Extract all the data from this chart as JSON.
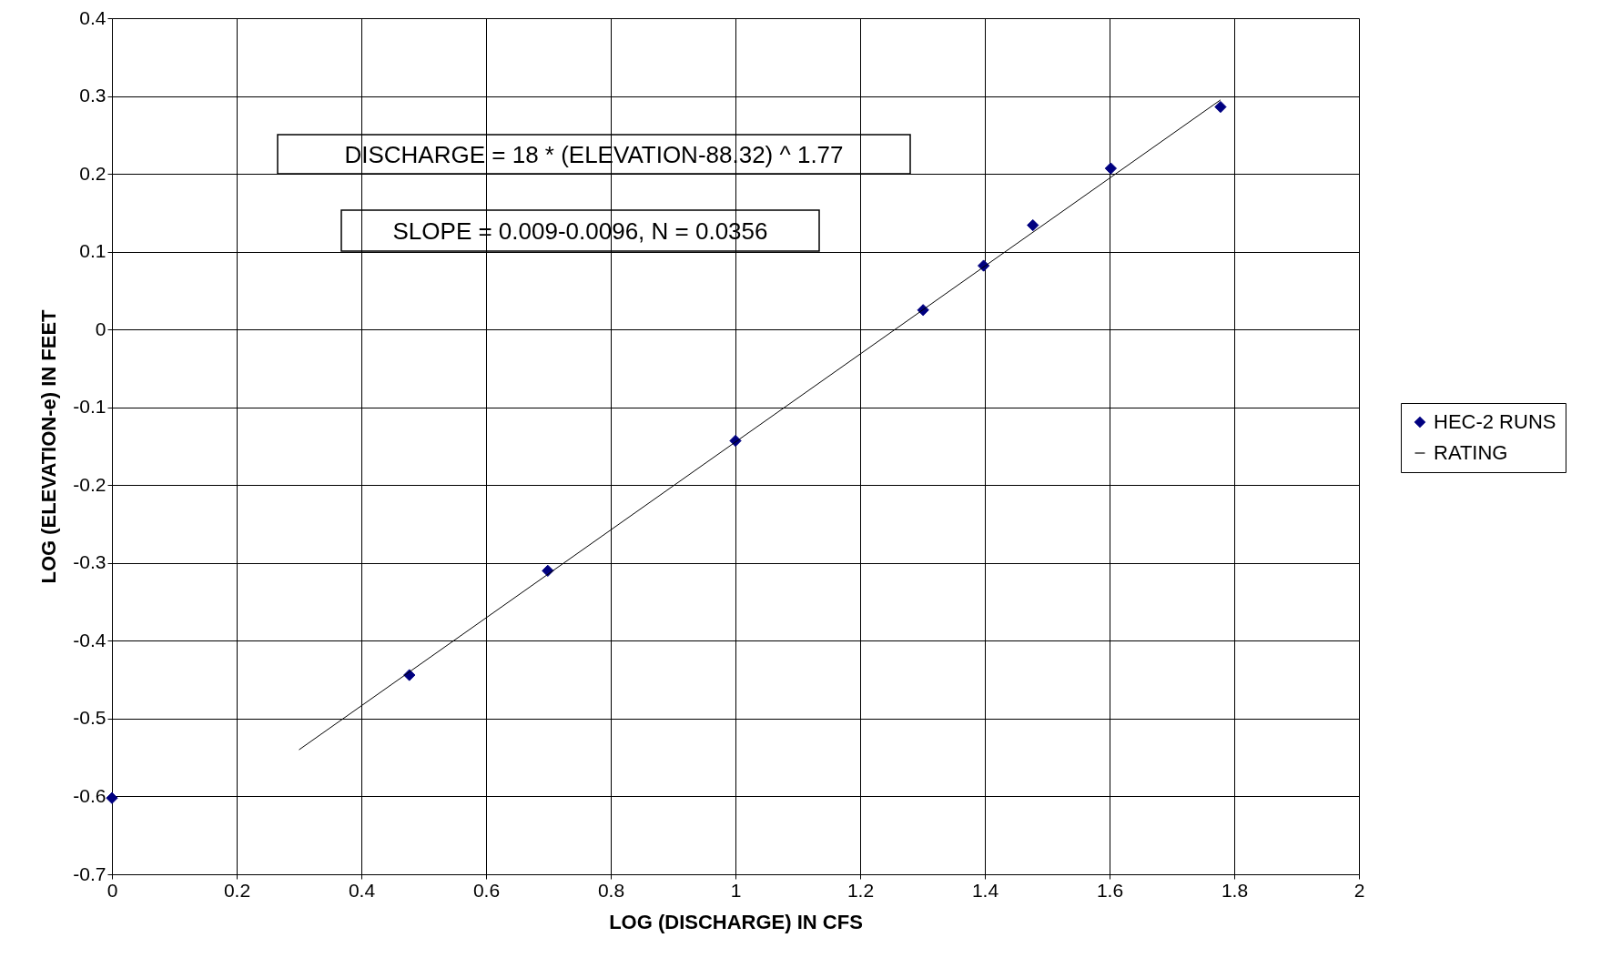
{
  "chart_data": {
    "type": "scatter",
    "xlabel": "LOG (DISCHARGE) IN CFS",
    "ylabel": "LOG (ELEVATION-e) IN FEET",
    "series": [
      {
        "name": "HEC-2 RUNS",
        "marker": "diamond",
        "color": "#000080",
        "x": [
          0,
          0.477,
          0.699,
          1,
          1.301,
          1.398,
          1.477,
          1.602,
          1.778
        ],
        "values": [
          -0.602,
          -0.444,
          -0.31,
          -0.143,
          0.025,
          0.082,
          0.134,
          0.207,
          0.286
        ]
      },
      {
        "name": "RATING",
        "type": "line",
        "marker": "none",
        "line_style": "solid",
        "color": "#000000",
        "x": [
          0.3,
          1.778
        ],
        "values": [
          -0.54,
          0.295
        ]
      }
    ],
    "annotations": [
      "DISCHARGE = 18 * (ELEVATION-88.32) ^ 1.77",
      "SLOPE = 0.009-0.0096, N = 0.0356"
    ],
    "xlim": [
      0,
      2
    ],
    "xticks": [
      0,
      0.2,
      0.4,
      0.6,
      0.8,
      1,
      1.2,
      1.4,
      1.6,
      1.8,
      2
    ],
    "ylim": [
      -0.7,
      0.4
    ],
    "yticks": [
      -0.7,
      -0.6,
      -0.5,
      -0.4,
      -0.3,
      -0.2,
      -0.1,
      0,
      0.1,
      0.2,
      0.3,
      0.4
    ],
    "grid": true,
    "legend": "right"
  }
}
